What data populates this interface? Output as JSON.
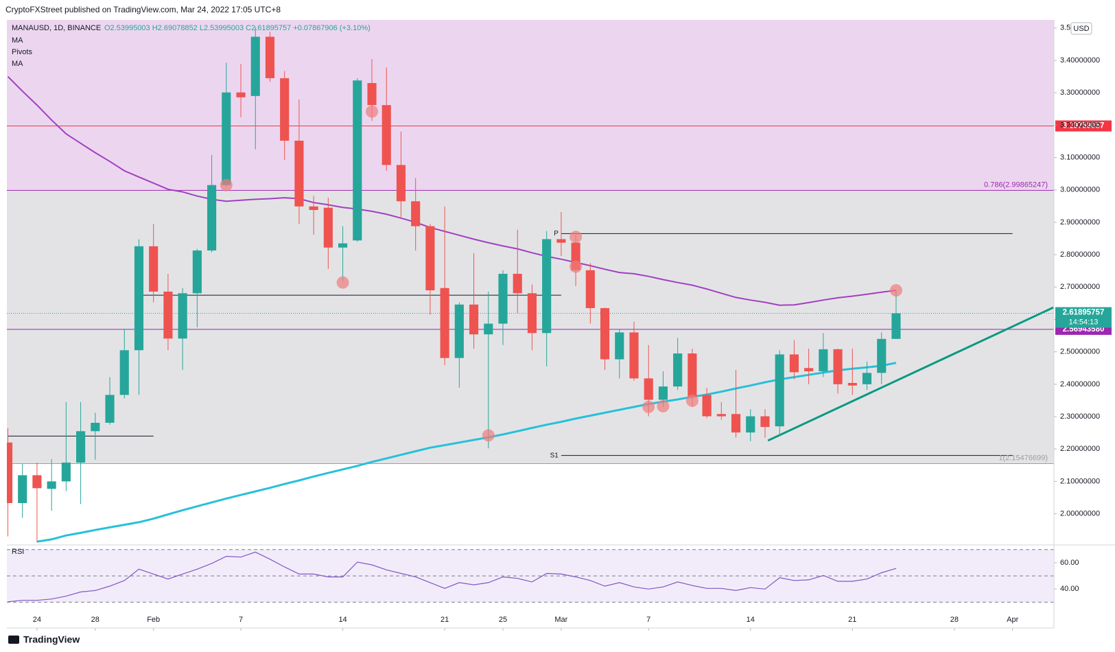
{
  "header": {
    "published": "CryptoFXStreet published on TradingView.com, Mar 24, 2022 17:05 UTC+8",
    "symbol": "MANAUSD, 1D, BINANCE",
    "ohlc": "O2.53995003 H2.69078852 L2.53995003 C2.61895757 +0.07867906 (+3.10%)",
    "currency": "USD",
    "brand": "TradingView"
  },
  "chart_data": [
    {
      "type": "candlestick",
      "x": [
        -2,
        -1,
        0,
        1,
        2,
        3,
        4,
        5,
        6,
        7,
        8,
        9,
        10,
        11,
        12,
        13,
        14,
        15,
        16,
        17,
        18,
        19,
        20,
        21,
        22,
        23,
        24,
        25,
        26,
        27,
        28,
        29,
        30,
        31,
        32,
        33,
        34,
        35,
        36,
        37,
        38,
        39,
        40,
        41,
        42,
        43,
        44,
        45,
        46,
        47,
        48,
        49,
        50,
        51,
        52,
        53,
        54,
        55,
        56,
        57,
        58,
        59
      ],
      "open": [
        2.22,
        2.033,
        2.119,
        2.077,
        2.1,
        2.158,
        2.255,
        2.281,
        2.367,
        2.505,
        2.826,
        2.686,
        2.541,
        2.681,
        2.813,
        3.015,
        3.301,
        3.29,
        3.473,
        3.345,
        3.152,
        2.949,
        2.945,
        2.822,
        2.844,
        3.33,
        3.262,
        3.077,
        2.965,
        2.888,
        2.697,
        2.481,
        2.646,
        2.554,
        2.587,
        2.741,
        2.681,
        2.558,
        2.848,
        2.837,
        2.752,
        2.635,
        2.477,
        2.56,
        2.418,
        2.352,
        2.393,
        2.495,
        2.367,
        2.308,
        2.308,
        2.251,
        2.301,
        2.27,
        2.492,
        2.45,
        2.44,
        2.508,
        2.404,
        2.4,
        2.435,
        2.54
      ],
      "high": [
        2.264,
        2.154,
        2.158,
        2.169,
        2.345,
        2.345,
        2.312,
        2.422,
        2.571,
        2.848,
        2.895,
        2.741,
        2.697,
        2.818,
        3.108,
        3.393,
        3.389,
        3.503,
        3.488,
        3.367,
        3.279,
        2.982,
        2.976,
        2.888,
        3.345,
        3.404,
        3.378,
        3.18,
        3.037,
        2.895,
        2.949,
        2.653,
        2.805,
        2.686,
        2.752,
        2.877,
        2.708,
        2.873,
        2.932,
        2.862,
        2.774,
        2.637,
        2.569,
        2.593,
        2.521,
        2.44,
        2.543,
        2.51,
        2.389,
        2.345,
        2.444,
        2.323,
        2.323,
        2.505,
        2.536,
        2.51,
        2.558,
        2.51,
        2.51,
        2.47,
        2.56,
        2.69
      ],
      "low": [
        1.93,
        1.987,
        1.912,
        2.009,
        2.07,
        2.03,
        2.167,
        2.275,
        2.356,
        2.367,
        2.653,
        2.505,
        2.444,
        2.576,
        2.807,
        3.011,
        3.224,
        3.125,
        3.334,
        3.092,
        2.895,
        2.862,
        2.756,
        2.719,
        2.84,
        3.213,
        3.059,
        2.916,
        2.813,
        2.615,
        2.459,
        2.389,
        2.51,
        2.202,
        2.521,
        2.619,
        2.505,
        2.455,
        2.796,
        2.703,
        2.587,
        2.444,
        2.418,
        2.411,
        2.301,
        2.33,
        2.382,
        2.33,
        2.295,
        2.29,
        2.235,
        2.224,
        2.235,
        2.242,
        2.415,
        2.4,
        2.422,
        2.371,
        2.367,
        2.382,
        2.4,
        2.54
      ],
      "close": [
        2.033,
        2.119,
        2.079,
        2.1,
        2.158,
        2.255,
        2.281,
        2.367,
        2.505,
        2.826,
        2.686,
        2.541,
        2.681,
        2.813,
        3.015,
        3.301,
        3.286,
        3.473,
        3.345,
        3.152,
        2.949,
        2.938,
        2.822,
        2.835,
        3.338,
        3.262,
        3.077,
        2.965,
        2.888,
        2.69,
        2.481,
        2.646,
        2.554,
        2.587,
        2.741,
        2.681,
        2.558,
        2.848,
        2.837,
        2.752,
        2.635,
        2.477,
        2.56,
        2.418,
        2.352,
        2.393,
        2.495,
        2.361,
        2.301,
        2.301,
        2.251,
        2.301,
        2.268,
        2.492,
        2.437,
        2.44,
        2.508,
        2.4,
        2.396,
        2.435,
        2.54,
        2.619
      ],
      "up_color": "#26a69a",
      "down_color": "#ef5350",
      "xlim": [
        -2.07,
        69.84
      ],
      "ylim": [
        1.908,
        3.525
      ],
      "xticks": [
        {
          "value": 0,
          "label": "24"
        },
        {
          "value": 4,
          "label": "28"
        },
        {
          "value": 8,
          "label": "Feb"
        },
        {
          "value": 14,
          "label": "7"
        },
        {
          "value": 21,
          "label": "14"
        },
        {
          "value": 28,
          "label": "21"
        },
        {
          "value": 32,
          "label": "25"
        },
        {
          "value": 36,
          "label": "Mar"
        },
        {
          "value": 42,
          "label": "7"
        },
        {
          "value": 49,
          "label": "14"
        },
        {
          "value": 56,
          "label": "21"
        },
        {
          "value": 63,
          "label": "28"
        },
        {
          "value": 67,
          "label": "Apr"
        }
      ],
      "yticks": [
        {
          "value": 3.5,
          "label": "3.5"
        },
        {
          "value": 3.4,
          "label": "3.40000000"
        },
        {
          "value": 3.3,
          "label": "3.30000000"
        },
        {
          "value": 3.2,
          "label": "3.20000000"
        },
        {
          "value": 3.1,
          "label": "3.10000000"
        },
        {
          "value": 3.0,
          "label": "3.00000000"
        },
        {
          "value": 2.9,
          "label": "2.90000000"
        },
        {
          "value": 2.8,
          "label": "2.80000000"
        },
        {
          "value": 2.7,
          "label": "2.70000000"
        },
        {
          "value": 2.6,
          "label": "2.60000000"
        },
        {
          "value": 2.5,
          "label": "2.50000000"
        },
        {
          "value": 2.4,
          "label": "2.40000000"
        },
        {
          "value": 2.3,
          "label": "2.30000000"
        },
        {
          "value": 2.2,
          "label": "2.20000000"
        },
        {
          "value": 2.1,
          "label": "2.10000000"
        },
        {
          "value": 2.0,
          "label": "2.00000000"
        }
      ],
      "series": [
        {
          "name": "MA",
          "color": "#a13fc0",
          "values": [
            3.35,
            3.305,
            3.262,
            3.216,
            3.173,
            3.144,
            3.115,
            3.088,
            3.059,
            3.04,
            3.021,
            3.002,
            2.994,
            2.981,
            2.971,
            2.965,
            2.968,
            2.971,
            2.973,
            2.976,
            2.973,
            2.961,
            2.954,
            2.946,
            2.941,
            2.934,
            2.925,
            2.913,
            2.9,
            2.884,
            2.872,
            2.86,
            2.848,
            2.837,
            2.827,
            2.818,
            2.806,
            2.795,
            2.786,
            2.776,
            2.766,
            2.755,
            2.745,
            2.741,
            2.733,
            2.723,
            2.714,
            2.706,
            2.694,
            2.681,
            2.668,
            2.66,
            2.653,
            2.644,
            2.645,
            2.652,
            2.66,
            2.667,
            2.672,
            2.678,
            2.684,
            2.69
          ]
        },
        {
          "name": "MA",
          "color": "#26c0d9",
          "values": [
            null,
            null,
            1.914,
            1.921,
            1.933,
            1.941,
            1.95,
            1.958,
            1.966,
            1.974,
            1.985,
            1.998,
            2.011,
            2.023,
            2.035,
            2.047,
            2.058,
            2.069,
            2.08,
            2.092,
            2.103,
            2.115,
            2.126,
            2.137,
            2.148,
            2.16,
            2.171,
            2.182,
            2.193,
            2.204,
            2.212,
            2.22,
            2.228,
            2.236,
            2.245,
            2.255,
            2.265,
            2.275,
            2.284,
            2.294,
            2.303,
            2.312,
            2.321,
            2.33,
            2.339,
            2.346,
            2.353,
            2.361,
            2.368,
            2.377,
            2.387,
            2.396,
            2.406,
            2.415,
            2.422,
            2.429,
            2.436,
            2.443,
            2.448,
            2.452,
            2.457,
            2.466
          ]
        }
      ],
      "levels": [
        {
          "value": 2.15476699,
          "color": "#9e9e9e",
          "label": "1(2.15476699)",
          "fill_above": "#e3e3e6"
        },
        {
          "value": 2.5694358,
          "color": "#9c27b0",
          "price_label": "2.56943580"
        },
        {
          "value": 2.99865247,
          "color": "#9c27b0",
          "label": "0.786(2.99865247)",
          "fill_above": "#ecd6ef"
        },
        {
          "value": 3.19759057,
          "color": "#f23645",
          "price_label": "3.19759057"
        }
      ],
      "pivots": {
        "name": "Pivots",
        "lines": [
          {
            "label": "P",
            "value": 2.865,
            "x": [
              36,
              67
            ]
          },
          {
            "label": "S1",
            "value": 2.18,
            "x": [
              36,
              67
            ]
          },
          {
            "value": 2.675,
            "x": [
              7,
              36
            ]
          },
          {
            "value": 2.24,
            "x": [
              -2,
              8
            ]
          }
        ]
      },
      "current": {
        "value": 2.61895757,
        "countdown": "14:54:13",
        "color": "#26a69a"
      },
      "trendline": {
        "x": [
          50.2,
          69.8
        ],
        "y": [
          2.226,
          2.637
        ],
        "color": "#089981"
      },
      "markers": {
        "x": [
          13,
          23,
          21,
          31,
          37,
          37,
          42,
          43,
          45,
          59
        ],
        "y": [
          3.015,
          3.242,
          2.714,
          2.242,
          2.855,
          2.763,
          2.33,
          2.332,
          2.349,
          2.69
        ],
        "color": "#f07c7c"
      }
    },
    {
      "type": "line",
      "title": "RSI",
      "x": [
        -2,
        -1,
        0,
        1,
        2,
        3,
        4,
        5,
        6,
        7,
        8,
        9,
        10,
        11,
        12,
        13,
        14,
        15,
        16,
        17,
        18,
        19,
        20,
        21,
        22,
        23,
        24,
        25,
        26,
        27,
        28,
        29,
        30,
        31,
        32,
        33,
        34,
        35,
        36,
        37,
        38,
        39,
        40,
        41,
        42,
        43,
        44,
        45,
        46,
        47,
        48,
        49,
        50,
        51,
        52,
        53,
        54,
        55,
        56,
        57,
        58,
        59
      ],
      "series": [
        {
          "color": "#7e57c2",
          "values": [
            30.3,
            31.4,
            31.4,
            32.4,
            34.6,
            37.8,
            38.9,
            42.2,
            46.5,
            55.1,
            51.4,
            47.6,
            51.4,
            55.1,
            59.5,
            64.9,
            64.3,
            68.1,
            62.7,
            56.8,
            51.4,
            51.4,
            49.2,
            49.2,
            60.5,
            58.4,
            54.6,
            51.9,
            49.2,
            44.9,
            40.5,
            44.9,
            43.2,
            44.9,
            49.2,
            48.1,
            45.4,
            51.9,
            51.4,
            49.2,
            46.5,
            42.2,
            44.9,
            41.6,
            40,
            41.6,
            45.4,
            42.7,
            40.5,
            40.5,
            38.9,
            41.1,
            40,
            48.6,
            46.5,
            47,
            50.3,
            45.9,
            45.9,
            47.6,
            52.4,
            55.7
          ]
        }
      ],
      "xlim": [
        -2.07,
        69.84
      ],
      "ylim": [
        25,
        72.5
      ],
      "yticks": [
        {
          "value": 60,
          "label": "60.00"
        },
        {
          "value": 40,
          "label": "40.00"
        }
      ],
      "bands": [
        70,
        50,
        30
      ],
      "band_fill": "#f2ecfa"
    }
  ]
}
